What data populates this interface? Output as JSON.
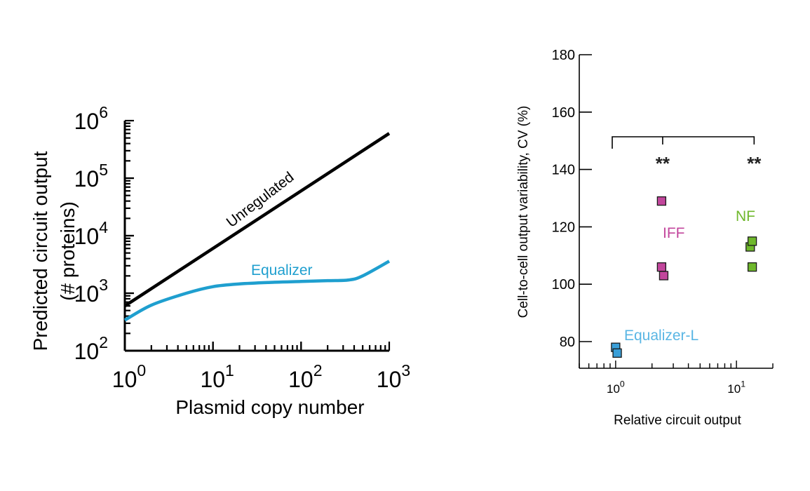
{
  "colors": {
    "axis": "#000000",
    "unregulated": "#000000",
    "equalizer": "#1f9fcf",
    "iff": "#c2469c",
    "nf": "#6fb82c",
    "equalizer_l": "#3a9fd8",
    "equalizer_l_label": "#5ab6e4",
    "bracket": "#000000"
  },
  "chart_data": [
    {
      "type": "line",
      "xlabel": "Plasmid copy number",
      "ylabel": "Predicted circuit output (# proteins)",
      "ylabel_lines": [
        "Predicted circuit output",
        "(# proteins)"
      ],
      "xscale": "log",
      "yscale": "log",
      "xlim": [
        1,
        1000
      ],
      "ylim": [
        100,
        1000000
      ],
      "xticks": [
        {
          "value": 1,
          "base": "10",
          "exp": "0"
        },
        {
          "value": 10,
          "base": "10",
          "exp": "1"
        },
        {
          "value": 100,
          "base": "10",
          "exp": "2"
        },
        {
          "value": 1000,
          "base": "10",
          "exp": "3"
        }
      ],
      "yticks": [
        {
          "value": 100,
          "base": "10",
          "exp": "2"
        },
        {
          "value": 1000,
          "base": "10",
          "exp": "3"
        },
        {
          "value": 10000,
          "base": "10",
          "exp": "4"
        },
        {
          "value": 100000,
          "base": "10",
          "exp": "5"
        },
        {
          "value": 1000000,
          "base": "10",
          "exp": "6"
        }
      ],
      "series": [
        {
          "name": "Unregulated",
          "color_key": "unregulated",
          "points": [
            [
              1,
              600
            ],
            [
              1000,
              600000
            ]
          ]
        },
        {
          "name": "Equalizer",
          "color_key": "equalizer",
          "points": [
            [
              1,
              340
            ],
            [
              2,
              620
            ],
            [
              5,
              1000
            ],
            [
              10,
              1300
            ],
            [
              20,
              1450
            ],
            [
              50,
              1550
            ],
            [
              100,
              1600
            ],
            [
              200,
              1650
            ],
            [
              350,
              1700
            ],
            [
              500,
              2000
            ],
            [
              1000,
              3600
            ]
          ]
        }
      ]
    },
    {
      "type": "scatter",
      "xlabel": "Relative circuit output",
      "ylabel": "Cell-to-cell output variability, CV (%)",
      "xscale": "log",
      "xlim": [
        0.5,
        20
      ],
      "ylim": [
        75,
        180
      ],
      "xticks": [
        {
          "value": 1,
          "base": "10",
          "exp": "0"
        },
        {
          "value": 10,
          "base": "10",
          "exp": "1"
        }
      ],
      "yticks": [
        80,
        100,
        120,
        140,
        160,
        180
      ],
      "series": [
        {
          "name": "Equalizer-L",
          "color_key": "equalizer_l",
          "label_color_key": "equalizer_l_label",
          "points": [
            [
              1.0,
              78
            ],
            [
              1.03,
              76
            ]
          ]
        },
        {
          "name": "IFF",
          "color_key": "iff",
          "points": [
            [
              2.4,
              129
            ],
            [
              2.4,
              106
            ],
            [
              2.5,
              103
            ]
          ]
        },
        {
          "name": "NF",
          "color_key": "nf",
          "points": [
            [
              13,
              113
            ],
            [
              13.5,
              115
            ],
            [
              13.5,
              106
            ]
          ]
        }
      ],
      "significance": [
        {
          "text": "**",
          "from": 1.0,
          "to": 2.45
        },
        {
          "text": "**",
          "from": 1.0,
          "to": 14
        }
      ]
    }
  ]
}
